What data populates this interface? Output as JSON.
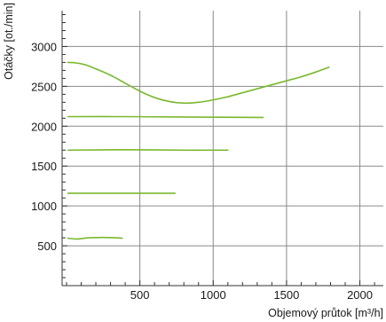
{
  "chart_data": {
    "type": "line",
    "xlabel": "Objemový průtok [m³/h]",
    "ylabel": "Otáčky [ot./min]",
    "xlim": [
      -30,
      2160
    ],
    "ylim": [
      0,
      3450
    ],
    "x_ticks": [
      500,
      1000,
      1500,
      2000
    ],
    "y_ticks": [
      500,
      1000,
      1500,
      2000,
      2500,
      3000
    ],
    "x_tick_labels": [
      "500",
      "1000",
      "1500",
      "2000"
    ],
    "y_tick_labels": [
      "500",
      "1000",
      "1500",
      "2000",
      "2500",
      "3000"
    ],
    "x_minor_step": 100,
    "y_minor_step": 100,
    "grid": true,
    "legend": "none",
    "color": "#7ab82e",
    "series": [
      {
        "x": [
          10,
          60,
          130,
          200,
          300,
          400,
          500,
          600,
          700,
          800,
          900,
          1000,
          1100,
          1200,
          1300,
          1400,
          1500,
          1600,
          1700,
          1790
        ],
        "y": [
          2800,
          2795,
          2770,
          2720,
          2640,
          2540,
          2440,
          2360,
          2310,
          2290,
          2300,
          2330,
          2370,
          2420,
          2470,
          2520,
          2570,
          2620,
          2680,
          2740
        ]
      },
      {
        "x": [
          10,
          400,
          800,
          1340
        ],
        "y": [
          2120,
          2120,
          2115,
          2110
        ]
      },
      {
        "x": [
          10,
          400,
          800,
          1100
        ],
        "y": [
          1700,
          1705,
          1700,
          1700
        ]
      },
      {
        "x": [
          10,
          300,
          600,
          740
        ],
        "y": [
          1160,
          1160,
          1160,
          1160
        ]
      },
      {
        "x": [
          10,
          70,
          150,
          250,
          340,
          380
        ],
        "y": [
          595,
          585,
          600,
          605,
          600,
          595
        ]
      }
    ]
  }
}
